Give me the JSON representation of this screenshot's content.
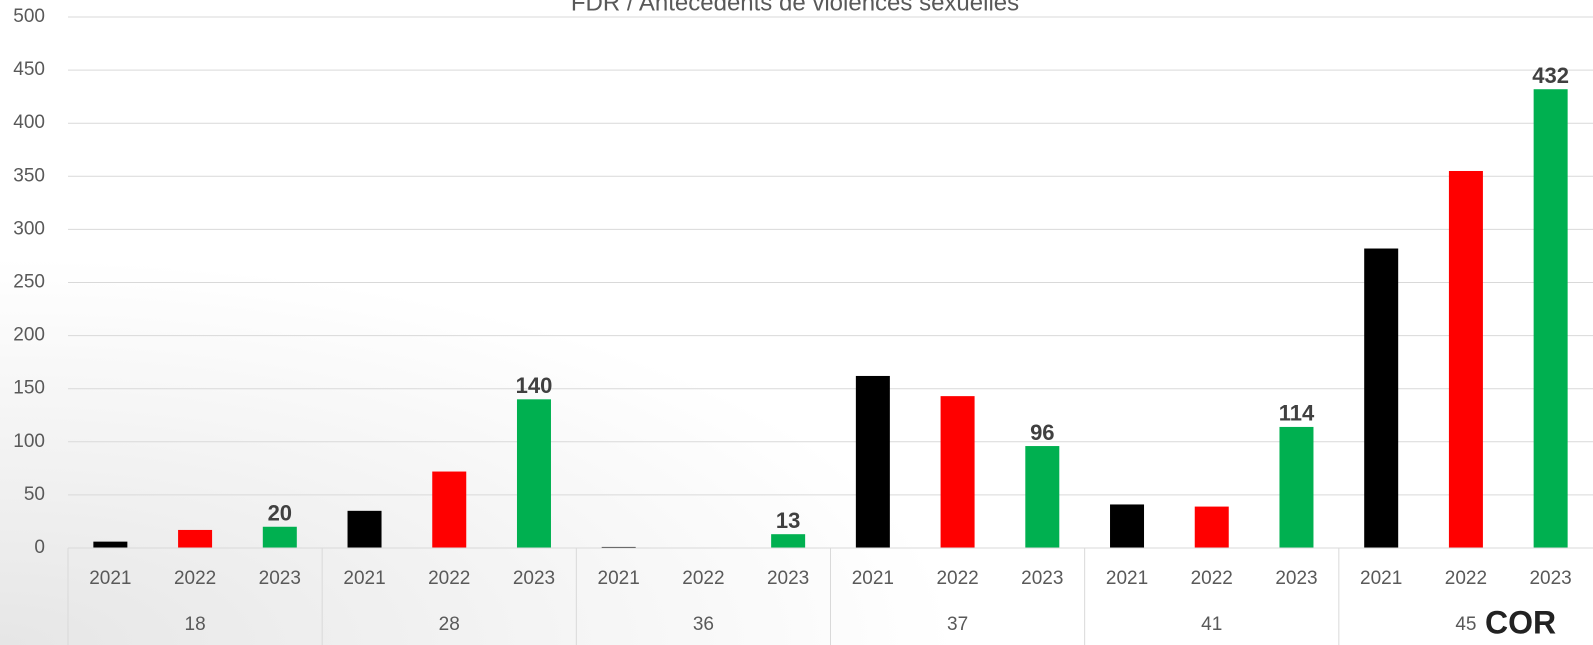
{
  "chart_data": {
    "type": "bar",
    "title": "FDR / Antécédents de violences sexuelles",
    "categories": [
      "18",
      "28",
      "36",
      "37",
      "41",
      "45"
    ],
    "series": [
      {
        "name": "2021",
        "color": "#000000",
        "values": [
          6,
          35,
          1,
          162,
          41,
          282
        ]
      },
      {
        "name": "2022",
        "color": "#ff0000",
        "values": [
          17,
          72,
          0,
          143,
          39,
          355
        ]
      },
      {
        "name": "2023",
        "color": "#00b050",
        "values": [
          20,
          140,
          13,
          96,
          114,
          432
        ],
        "show_labels": true
      }
    ],
    "ylim": [
      0,
      500
    ],
    "yticks": [
      0,
      50,
      100,
      150,
      200,
      250,
      300,
      350,
      400,
      450,
      500
    ],
    "grid": true,
    "watermark": "COR"
  }
}
